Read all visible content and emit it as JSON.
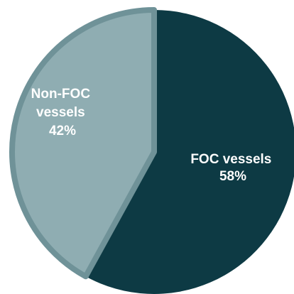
{
  "chart_data": {
    "type": "pie",
    "title": "",
    "slices": [
      {
        "name": "FOC vessels",
        "label_lines": [
          "FOC vessels",
          "58%"
        ],
        "value": 58,
        "color": "#0d3a44"
      },
      {
        "name": "Non-FOC vessels",
        "label_lines": [
          "Non-FOC",
          "vessels",
          "42%"
        ],
        "value": 42,
        "color": "#8fadb2"
      }
    ],
    "start_angle_deg": 0,
    "direction": "clockwise",
    "edge_color": "#6f9298",
    "legend": "none"
  }
}
